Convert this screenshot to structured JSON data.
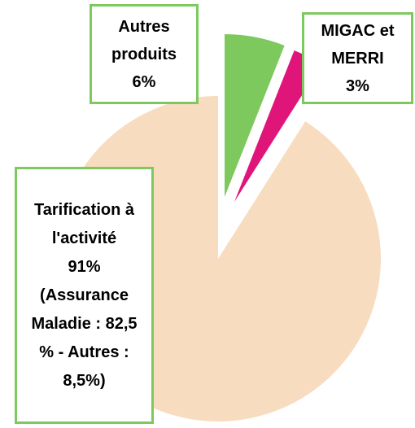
{
  "chart_data": {
    "type": "pie",
    "categories": [
      "Autres produits",
      "MIGAC et MERRI",
      "Tarification à l'activité"
    ],
    "values": [
      6,
      3,
      91
    ],
    "value_labels": [
      "6%",
      "3%",
      "91%"
    ],
    "colors": [
      "#7dc95e",
      "#e0157a",
      "#f8dcc0"
    ],
    "annotation": "(Assurance Maladie : 82,5 % - Autres : 8,5%)"
  }
}
